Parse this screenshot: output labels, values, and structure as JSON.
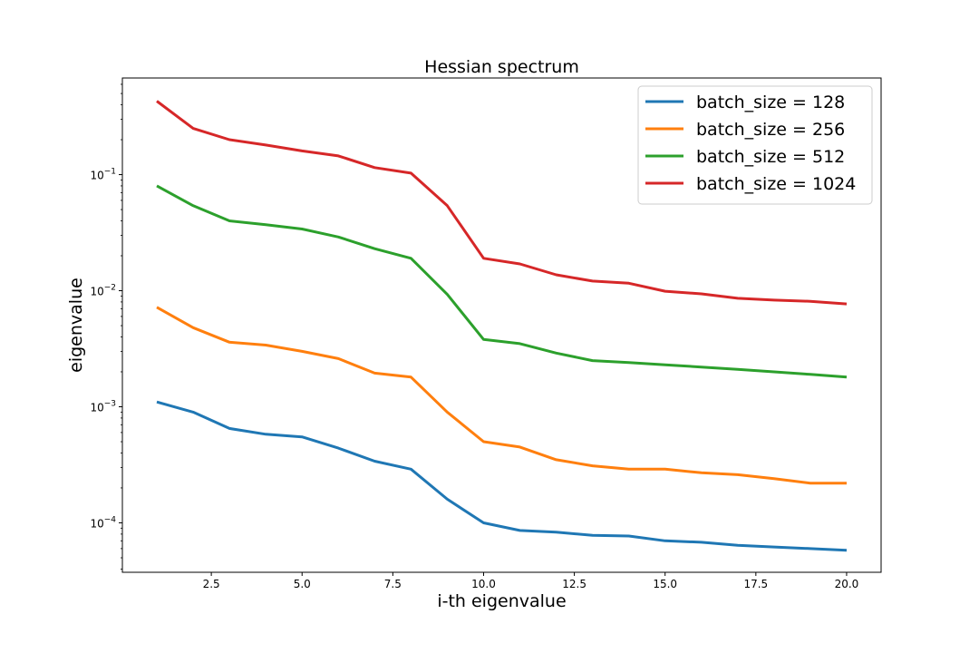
{
  "chart_data": {
    "type": "line",
    "title": "Hessian spectrum",
    "xlabel": "i-th eigenvalue",
    "ylabel": "eigenvalue",
    "yscale": "log",
    "xlim": [
      0.05,
      20.95
    ],
    "ylim": [
      3.75e-05,
      0.68
    ],
    "xticks": [
      2.5,
      5.0,
      7.5,
      10.0,
      12.5,
      15.0,
      17.5,
      20.0
    ],
    "xtick_labels": [
      "2.5",
      "5.0",
      "7.5",
      "10.0",
      "12.5",
      "15.0",
      "17.5",
      "20.0"
    ],
    "yticks_major": [
      0.0001,
      0.001,
      0.01,
      0.1
    ],
    "ytick_labels": [
      {
        "base": "10",
        "exp": "−4"
      },
      {
        "base": "10",
        "exp": "−3"
      },
      {
        "base": "10",
        "exp": "−2"
      },
      {
        "base": "10",
        "exp": "−1"
      }
    ],
    "grid": false,
    "legend_position": "top-right",
    "x": [
      1,
      2,
      3,
      4,
      5,
      6,
      7,
      8,
      9,
      10,
      11,
      12,
      13,
      14,
      15,
      16,
      17,
      18,
      19,
      20
    ],
    "series": [
      {
        "name": "batch_size = 128",
        "color": "#1f77b4",
        "values": [
          0.0011,
          0.0009,
          0.00065,
          0.00058,
          0.00055,
          0.00044,
          0.00034,
          0.00029,
          0.00016,
          0.0001,
          8.6e-05,
          8.3e-05,
          7.8e-05,
          7.7e-05,
          7e-05,
          6.8e-05,
          6.4e-05,
          6.2e-05,
          6e-05,
          5.8e-05
        ]
      },
      {
        "name": "batch_size = 256",
        "color": "#ff7f0e",
        "values": [
          0.0072,
          0.0048,
          0.0036,
          0.0034,
          0.003,
          0.0026,
          0.00195,
          0.0018,
          0.0009,
          0.0005,
          0.00045,
          0.00035,
          0.00031,
          0.00029,
          0.00029,
          0.00027,
          0.00026,
          0.00024,
          0.00022,
          0.00022
        ]
      },
      {
        "name": "batch_size = 512",
        "color": "#2ca02c",
        "values": [
          0.08,
          0.054,
          0.04,
          0.037,
          0.034,
          0.029,
          0.023,
          0.019,
          0.0093,
          0.0038,
          0.0035,
          0.0029,
          0.0025,
          0.0024,
          0.0023,
          0.0022,
          0.0021,
          0.002,
          0.0019,
          0.0018
        ]
      },
      {
        "name": "batch_size = 1024",
        "color": "#d62728",
        "values": [
          0.43,
          0.25,
          0.2,
          0.18,
          0.16,
          0.145,
          0.115,
          0.103,
          0.054,
          0.019,
          0.017,
          0.0137,
          0.0121,
          0.0116,
          0.0099,
          0.0094,
          0.0086,
          0.0083,
          0.0081,
          0.0077
        ]
      }
    ]
  }
}
